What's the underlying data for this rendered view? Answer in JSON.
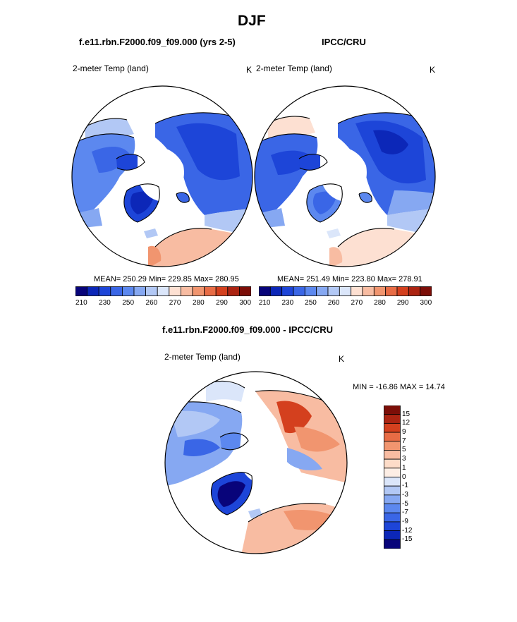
{
  "page_title": "DJF",
  "chart_data": [
    {
      "type": "heatmap",
      "projection": "north-polar-stereographic",
      "title": "f.e11.rbn.F2000.f09_f09.000 (yrs 2-5)",
      "left_label": "2-meter Temp (land)",
      "units": "K",
      "stats": {
        "mean": "250.29",
        "min": "229.85",
        "max": "280.95"
      },
      "stats_text": "MEAN= 250.29  Min= 229.85  Max= 280.95",
      "colorbar": {
        "orientation": "horizontal",
        "levels": [
          210,
          230,
          250,
          260,
          270,
          280,
          290,
          300
        ],
        "colors": [
          "#08047a",
          "#0c27b8",
          "#1d45d8",
          "#3a66e6",
          "#5c88ef",
          "#86a8f2",
          "#b2c8f5",
          "#dbe6fa",
          "#fde0d2",
          "#f8bca2",
          "#f1956f",
          "#e86c45",
          "#d4401e",
          "#ac2412",
          "#7c0e08"
        ]
      }
    },
    {
      "type": "heatmap",
      "projection": "north-polar-stereographic",
      "title": "IPCC/CRU",
      "left_label": "2-meter Temp (land)",
      "units": "K",
      "stats": {
        "mean": "251.49",
        "min": "223.80",
        "max": "278.91"
      },
      "stats_text": "MEAN= 251.49  Min= 223.80  Max= 278.91",
      "colorbar": {
        "orientation": "horizontal",
        "levels": [
          210,
          230,
          250,
          260,
          270,
          280,
          290,
          300
        ],
        "colors": [
          "#08047a",
          "#0c27b8",
          "#1d45d8",
          "#3a66e6",
          "#5c88ef",
          "#86a8f2",
          "#b2c8f5",
          "#dbe6fa",
          "#fde0d2",
          "#f8bca2",
          "#f1956f",
          "#e86c45",
          "#d4401e",
          "#ac2412",
          "#7c0e08"
        ]
      }
    },
    {
      "type": "heatmap",
      "projection": "north-polar-stereographic",
      "title": "f.e11.rbn.F2000.f09_f09.000 - IPCC/CRU",
      "left_label": "2-meter Temp (land)",
      "units": "K",
      "stats_text": "MIN = -16.86 MAX =  14.74",
      "stats": {
        "min": "-16.86",
        "max": "14.74"
      },
      "colorbar": {
        "orientation": "vertical",
        "levels": [
          15,
          12,
          9,
          7,
          5,
          3,
          1,
          0,
          -1,
          -3,
          -5,
          -7,
          -9,
          -12,
          -15
        ],
        "colors": [
          "#7c0e08",
          "#ac2412",
          "#d4401e",
          "#e86c45",
          "#f1956f",
          "#f8bca2",
          "#fddcc8",
          "#fdeee5",
          "#dbe6fa",
          "#b2c8f5",
          "#86a8f2",
          "#5c88ef",
          "#3a66e6",
          "#1d45d8",
          "#0c27b8",
          "#08047a"
        ]
      }
    }
  ]
}
